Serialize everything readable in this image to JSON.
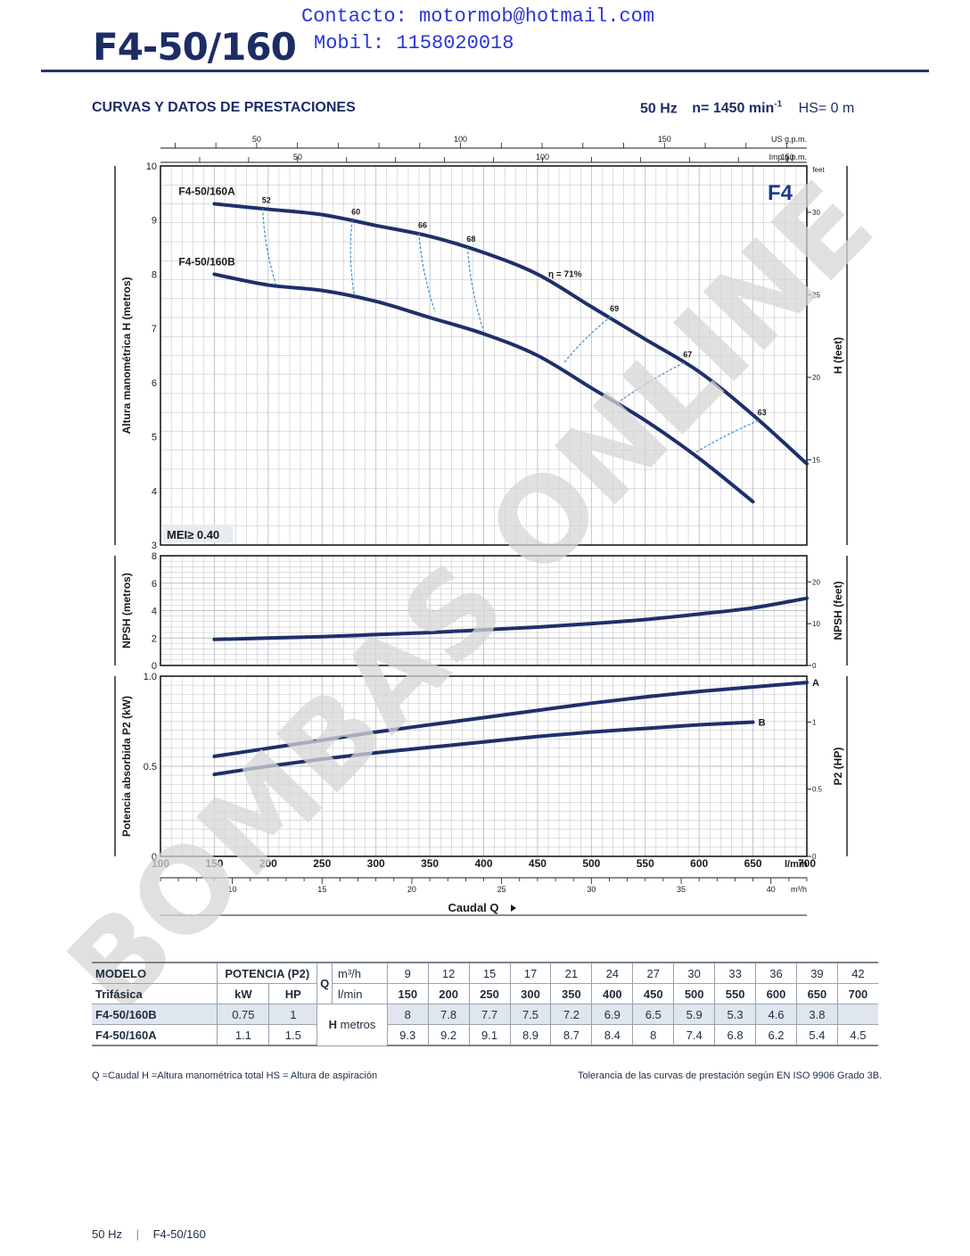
{
  "header": {
    "contact_line": "Contacto: motormob@hotmail.com",
    "mobile_line": "Mobil: 1158020018",
    "model_title": "F4-50/160",
    "section_title": "CURVAS Y DATOS DE PRESTACIONES",
    "freq": "50 Hz",
    "speed": "n= 1450 min-1",
    "hs": "HS= 0 m"
  },
  "watermark": "BOMBAS ONLINE",
  "colors": {
    "curve": "#1f2f6b",
    "efficiency": "#3a8fd0",
    "grid": "#b9bec6",
    "watermark": "#d6d6d6"
  },
  "chart_data": [
    {
      "type": "line",
      "name": "head",
      "badge": "F4",
      "ylabel": "Altura manométrica H (metros)",
      "ylabel_right": "H (feet)",
      "ylim": [
        3,
        10
      ],
      "yticks": [
        3,
        4,
        5,
        6,
        7,
        8,
        9,
        10
      ],
      "yticks_right": [
        15,
        20,
        25,
        30
      ],
      "yright_unit": "feet",
      "mei_label": "MEI≥ 0.40",
      "series": [
        {
          "name": "F4-50/160A",
          "x": [
            150,
            200,
            250,
            300,
            350,
            400,
            450,
            500,
            550,
            600,
            650,
            700
          ],
          "y": [
            9.3,
            9.2,
            9.1,
            8.9,
            8.7,
            8.4,
            8.0,
            7.4,
            6.8,
            6.2,
            5.4,
            4.5
          ]
        },
        {
          "name": "F4-50/160B",
          "x": [
            150,
            200,
            250,
            300,
            350,
            400,
            450,
            500,
            550,
            600,
            650
          ],
          "y": [
            8.0,
            7.8,
            7.7,
            7.5,
            7.2,
            6.9,
            6.5,
            5.9,
            5.3,
            4.6,
            3.8
          ]
        }
      ],
      "efficiency": [
        {
          "label": "52",
          "a": [
            195,
            9.22
          ],
          "b": [
            207,
            7.82
          ]
        },
        {
          "label": "60",
          "a": [
            278,
            9.0
          ],
          "b": [
            280,
            7.6
          ]
        },
        {
          "label": "66",
          "a": [
            340,
            8.76
          ],
          "b": [
            355,
            7.3
          ]
        },
        {
          "label": "68",
          "a": [
            385,
            8.5
          ],
          "b": [
            400,
            6.95
          ]
        },
        {
          "label": "η = 71%",
          "a": [
            460,
            7.85
          ],
          "b": null
        },
        {
          "label": "69",
          "a": [
            518,
            7.22
          ],
          "b": [
            474,
            6.35
          ]
        },
        {
          "label": "67",
          "a": [
            586,
            6.37
          ],
          "b": [
            526,
            5.65
          ]
        },
        {
          "label": "63",
          "a": [
            655,
            5.3
          ],
          "b": [
            596,
            4.7
          ]
        }
      ]
    },
    {
      "type": "line",
      "name": "npsh",
      "ylabel": "NPSH (metros)",
      "ylabel_right": "NPSH (feet)",
      "ylim": [
        0,
        8
      ],
      "yticks": [
        0,
        2,
        4,
        6,
        8
      ],
      "yticks_right": [
        0,
        10,
        20
      ],
      "series": [
        {
          "name": "NPSH",
          "x": [
            150,
            200,
            250,
            300,
            350,
            400,
            450,
            500,
            550,
            600,
            650,
            700
          ],
          "y": [
            1.9,
            2.0,
            2.1,
            2.25,
            2.4,
            2.6,
            2.8,
            3.05,
            3.35,
            3.75,
            4.2,
            4.9
          ]
        }
      ]
    },
    {
      "type": "line",
      "name": "power",
      "ylabel": "Potencia absorbida P2 (kW)",
      "ylabel_right": "P2 (HP)",
      "ylim": [
        0,
        1.0
      ],
      "yticks": [
        0,
        0.5,
        1.0
      ],
      "ytick_labels": [
        "0",
        "0.5",
        "1.0"
      ],
      "yticks_right": [
        0,
        0.5,
        1
      ],
      "series": [
        {
          "name": "A",
          "x": [
            150,
            200,
            250,
            300,
            350,
            400,
            450,
            500,
            550,
            600,
            650,
            700
          ],
          "y": [
            0.555,
            0.6,
            0.645,
            0.69,
            0.73,
            0.77,
            0.81,
            0.85,
            0.885,
            0.915,
            0.94,
            0.965
          ]
        },
        {
          "name": "B",
          "x": [
            150,
            200,
            250,
            300,
            350,
            400,
            450,
            500,
            550,
            600,
            650
          ],
          "y": [
            0.455,
            0.5,
            0.54,
            0.575,
            0.605,
            0.635,
            0.665,
            0.69,
            0.71,
            0.73,
            0.745
          ]
        }
      ]
    }
  ],
  "axes": {
    "lmin": {
      "label": "l/min",
      "min": 100,
      "max": 700,
      "ticks": [
        100,
        150,
        200,
        250,
        300,
        350,
        400,
        450,
        500,
        550,
        600,
        650,
        700
      ]
    },
    "m3h": {
      "label": "m³/h",
      "ticks": [
        10,
        15,
        20,
        25,
        30,
        35,
        40
      ]
    },
    "us_gpm": {
      "label": "US g.p.m.",
      "ticks": [
        50,
        100,
        150
      ]
    },
    "imp_gpm": {
      "label": "Imp g.p.m.",
      "ticks": [
        50,
        100,
        150
      ]
    },
    "caudal_label": "Caudal Q"
  },
  "table": {
    "header1": [
      "MODELO",
      "POTENCIA (P2)",
      "Q",
      "m³/h"
    ],
    "header2": [
      "Trifásica",
      "kW",
      "HP",
      "l/min"
    ],
    "m3h": [
      "9",
      "12",
      "15",
      "17",
      "21",
      "24",
      "27",
      "30",
      "33",
      "36",
      "39",
      "42"
    ],
    "lmin": [
      "150",
      "200",
      "250",
      "300",
      "350",
      "400",
      "450",
      "500",
      "550",
      "600",
      "650",
      "700"
    ],
    "h_label": "H",
    "h_unit": "metros",
    "rows": [
      {
        "model": "F4-50/160B",
        "kw": "0.75",
        "hp": "1",
        "values": [
          "8",
          "7.8",
          "7.7",
          "7.5",
          "7.2",
          "6.9",
          "6.5",
          "5.9",
          "5.3",
          "4.6",
          "3.8",
          ""
        ]
      },
      {
        "model": "F4-50/160A",
        "kw": "1.1",
        "hp": "1.5",
        "values": [
          "9.3",
          "9.2",
          "9.1",
          "8.9",
          "8.7",
          "8.4",
          "8",
          "7.4",
          "6.8",
          "6.2",
          "5.4",
          "4.5"
        ]
      }
    ]
  },
  "footer": {
    "legend": "Q =Caudal   H =Altura manométrica total   HS = Altura de aspiración",
    "tolerance": "Tolerancia de las curvas de prestación según EN ISO 9906 Grado 3B.",
    "page_freq": "50 Hz",
    "page_sep": "|",
    "page_model": "F4-50/160"
  }
}
